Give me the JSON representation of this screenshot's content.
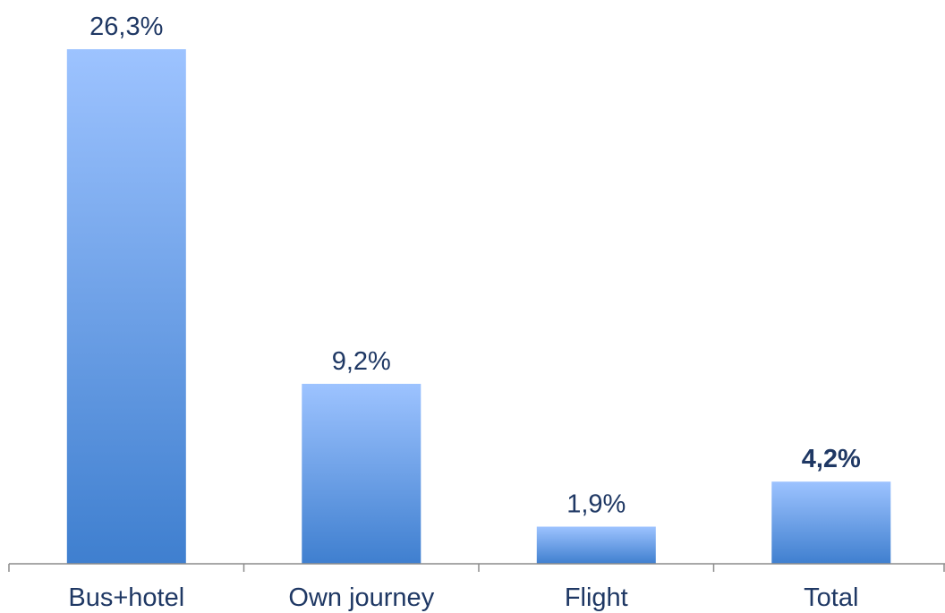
{
  "chart_data": {
    "type": "bar",
    "categories": [
      "Bus+hotel",
      "Own journey",
      "Flight",
      "Total"
    ],
    "values": [
      26.3,
      9.2,
      1.9,
      4.2
    ],
    "value_labels": [
      "26,3%",
      "9,2%",
      "1,9%",
      "4,2%"
    ],
    "bold_labels": [
      false,
      false,
      false,
      true
    ],
    "ylim": [
      0,
      26.3
    ],
    "grid": false,
    "legend": "none",
    "colors": {
      "bar_top": "#9dc3ff",
      "bar_bottom": "#3f7fcf",
      "label": "#1f3864",
      "axis": "#8c8c8c"
    }
  }
}
